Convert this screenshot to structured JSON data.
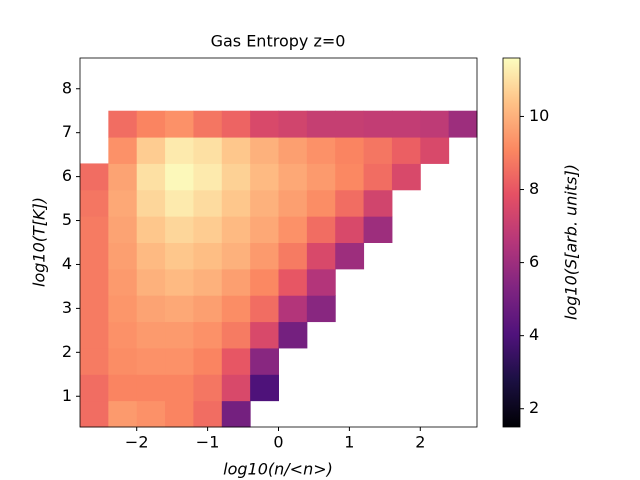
{
  "chart_data": {
    "type": "heatmap",
    "title": "Gas Entropy z=0",
    "xlabel": "log10(n/<n>)",
    "ylabel": "log10(T[K])",
    "colorbar_label": "log10(S[arb. units])",
    "colormap": "magma",
    "xlim": [
      -2.8,
      2.8
    ],
    "ylim": [
      0.3,
      8.7
    ],
    "clim": [
      1.5,
      11.6
    ],
    "xticks": [
      {
        "value": -2,
        "label": "−2"
      },
      {
        "value": -1,
        "label": "−1"
      },
      0,
      1,
      2
    ],
    "yticks": [
      1,
      2,
      3,
      4,
      5,
      6,
      7,
      8
    ],
    "cticks": [
      2,
      4,
      6,
      8,
      10
    ],
    "xbins": [
      -2.8,
      -2.4,
      -2.0,
      -1.6,
      -1.2,
      -0.8,
      -0.4,
      0.0,
      0.4,
      0.8,
      1.2,
      1.6,
      2.0,
      2.4,
      2.8
    ],
    "ybins": [
      0.3,
      0.9,
      1.5,
      2.1,
      2.7,
      3.3,
      3.9,
      4.5,
      5.1,
      5.7,
      6.3,
      6.9,
      7.5
    ],
    "z": [
      [
        8.5,
        9.5,
        9.3,
        9.0,
        8.5,
        5,
        null,
        null,
        null,
        null,
        null,
        null,
        null,
        null
      ],
      [
        8.5,
        9,
        9,
        9,
        8.7,
        7.5,
        4,
        null,
        null,
        null,
        null,
        null,
        null,
        null
      ],
      [
        8.8,
        9.2,
        9.3,
        9.3,
        9,
        8,
        5.5,
        null,
        null,
        null,
        null,
        null,
        null,
        null
      ],
      [
        8.8,
        9.3,
        9.5,
        9.5,
        9.3,
        8.8,
        7.5,
        5,
        null,
        null,
        null,
        null,
        null,
        null
      ],
      [
        8.8,
        9.4,
        9.7,
        9.8,
        9.6,
        9.2,
        8.5,
        6.5,
        5.5,
        null,
        null,
        null,
        null,
        null
      ],
      [
        8.8,
        9.5,
        10,
        10.2,
        10,
        9.6,
        9.1,
        8,
        6.5,
        null,
        null,
        null,
        null,
        null
      ],
      [
        8.8,
        9.6,
        10.2,
        10.5,
        10.3,
        10,
        9.5,
        8.8,
        7.5,
        6,
        null,
        null,
        null,
        null
      ],
      [
        8.8,
        9.7,
        10.5,
        10.8,
        10.6,
        10.2,
        9.8,
        9.3,
        8.5,
        7.5,
        6,
        null,
        null,
        null
      ],
      [
        8.7,
        9.8,
        10.8,
        11.2,
        10.9,
        10.5,
        10,
        9.6,
        9.2,
        8.5,
        7.3,
        null,
        null,
        null
      ],
      [
        8.5,
        9.7,
        11,
        11.5,
        11.2,
        10.7,
        10.2,
        9.8,
        9.5,
        9.1,
        8.5,
        7.5,
        null,
        null
      ],
      [
        null,
        9.3,
        10.6,
        11.2,
        11,
        10.5,
        10,
        9.6,
        9.3,
        9,
        8.7,
        8.2,
        7.5,
        null
      ],
      [
        null,
        8.5,
        9,
        9.3,
        8.7,
        8.3,
        7.5,
        7.3,
        7,
        7,
        6.9,
        6.9,
        6.8,
        6
      ]
    ]
  }
}
